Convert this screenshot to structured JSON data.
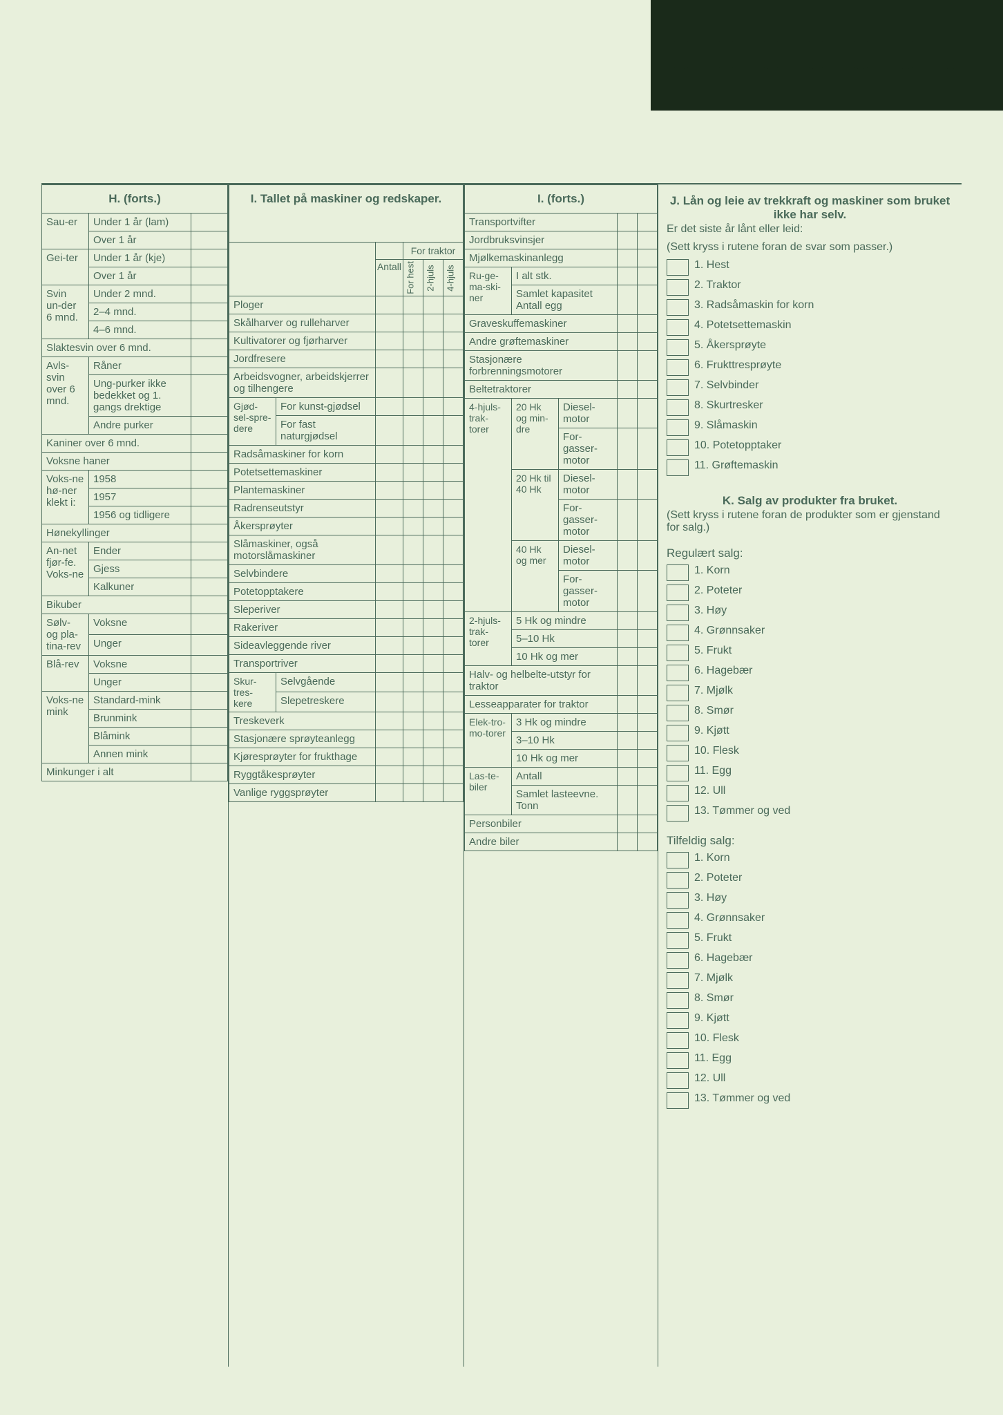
{
  "sections": {
    "H": {
      "title": "H. (forts.)",
      "rows": [
        {
          "g": "Sau-er",
          "l": "Under 1 år (lam)"
        },
        {
          "g": "",
          "l": "Over 1 år"
        },
        {
          "g": "Gei-ter",
          "l": "Under 1 år (kje)"
        },
        {
          "g": "",
          "l": "Over 1 år"
        },
        {
          "g": "Svin un-der 6 mnd.",
          "l": "Under 2 mnd."
        },
        {
          "g": "",
          "l": "2–4 mnd."
        },
        {
          "g": "",
          "l": "4–6 mnd."
        },
        {
          "g": "Slaktesvin over 6 mnd.",
          "l": ""
        },
        {
          "g": "Avls-svin over 6 mnd.",
          "l": "Råner"
        },
        {
          "g": "",
          "l": "Ung-purker ikke bedekket og 1. gangs drektige"
        },
        {
          "g": "",
          "l": "Andre purker"
        },
        {
          "g": "Kaniner over 6 mnd.",
          "l": ""
        },
        {
          "g": "Voksne haner",
          "l": ""
        },
        {
          "g": "Voks-ne hø-ner klekt i:",
          "l": "1958"
        },
        {
          "g": "",
          "l": "1957"
        },
        {
          "g": "",
          "l": "1956 og tidligere"
        },
        {
          "g": "Hønekyllinger",
          "l": ""
        },
        {
          "g": "An-net fjør-fe. Voks-ne",
          "l": "Ender"
        },
        {
          "g": "",
          "l": "Gjess"
        },
        {
          "g": "",
          "l": "Kalkuner"
        },
        {
          "g": "Bikuber",
          "l": ""
        },
        {
          "g": "Sølv- og pla-tina-rev",
          "l": "Voksne"
        },
        {
          "g": "",
          "l": "Unger"
        },
        {
          "g": "Blå-rev",
          "l": "Voksne"
        },
        {
          "g": "",
          "l": "Unger"
        },
        {
          "g": "Voks-ne mink",
          "l": "Standard-mink"
        },
        {
          "g": "",
          "l": "Brunmink"
        },
        {
          "g": "",
          "l": "Blåmink"
        },
        {
          "g": "",
          "l": "Annen mink"
        },
        {
          "g": "Minkunger i alt",
          "l": ""
        }
      ]
    },
    "I": {
      "title": "I. Tallet på maskiner og redskaper.",
      "traktor_hdr": "For traktor",
      "cols": [
        "For hest",
        "2-hjuls",
        "4-hjuls"
      ],
      "antall": "Antall",
      "rows": [
        "Ploger",
        "Skålharver og rulleharver",
        "Kultivatorer og fjørharver",
        "Jordfresere",
        "Arbeidsvogner, arbeidskjerrer og tilhengere",
        "Gjød-sel-spre-dere|For kunst-gjødsel",
        "|For fast naturgjødsel",
        "Radsåmaskiner for korn",
        "Potetsettemaskiner",
        "Plantemaskiner",
        "Radrenseutstyr",
        "Åkersprøyter",
        "Slåmaskiner, også motorslåmaskiner",
        "Selvbindere",
        "Potetopptakere",
        "Sleperiver",
        "Rakeriver",
        "Sideavleggende river",
        "Transportriver",
        "Skur-tres-kere|Selvgående",
        "|Slepetreskere",
        "Treskeverk",
        "Stasjonære sprøyteanlegg",
        "Kjøresprøyter for frukthage",
        "Ryggtåkesprøyter",
        "Vanlige ryggsprøyter"
      ]
    },
    "I2": {
      "title": "I. (forts.)",
      "rows": [
        {
          "l": "Transportvifter"
        },
        {
          "l": "Jordbruksvinsjer"
        },
        {
          "l": "Mjølkemaskinanlegg"
        },
        {
          "g": "Ru-ge-ma-ski-ner",
          "l": "I alt stk."
        },
        {
          "g": "",
          "l": "Samlet kapasitet Antall egg"
        },
        {
          "l": "Graveskuffemaskiner"
        },
        {
          "l": "Andre grøftemaskiner"
        },
        {
          "l": "Stasjonære forbrenningsmotorer"
        },
        {
          "l": "Beltetraktorer"
        },
        {
          "g": "4-hjuls-trak-torer",
          "s": "20 Hk og min-dre",
          "l": "Diesel-motor"
        },
        {
          "g": "",
          "s": "",
          "l": "For-gasser-motor"
        },
        {
          "g": "",
          "s": "20 Hk til 40 Hk",
          "l": "Diesel-motor"
        },
        {
          "g": "",
          "s": "",
          "l": "For-gasser-motor"
        },
        {
          "g": "",
          "s": "40 Hk og mer",
          "l": "Diesel-motor"
        },
        {
          "g": "",
          "s": "",
          "l": "For-gasser-motor"
        },
        {
          "g": "2-hjuls-trak-torer",
          "l": "5 Hk og mindre"
        },
        {
          "g": "",
          "l": "5–10 Hk"
        },
        {
          "g": "",
          "l": "10 Hk og mer"
        },
        {
          "l": "Halv- og helbelte-utstyr for traktor"
        },
        {
          "l": "Lesseapparater for traktor"
        },
        {
          "g": "Elek-tro-mo-torer",
          "l": "3 Hk og mindre"
        },
        {
          "g": "",
          "l": "3–10 Hk"
        },
        {
          "g": "",
          "l": "10 Hk og mer"
        },
        {
          "g": "Las-te-biler",
          "l": "Antall"
        },
        {
          "g": "",
          "l": "Samlet lasteevne. Tonn"
        },
        {
          "l": "Personbiler"
        },
        {
          "l": "Andre biler"
        }
      ]
    },
    "J": {
      "title": "J. Lån og leie av trekkraft og maskiner som bruket ikke har selv.",
      "intro": "Er det siste år lånt eller leid:",
      "hint": "(Sett kryss i rutene foran de svar som passer.)",
      "items": [
        "1. Hest",
        "2. Traktor",
        "3. Radsåmaskin for korn",
        "4. Potetsettemaskin",
        "5. Åkersprøyte",
        "6. Frukttresprøyte",
        "7. Selvbinder",
        "8. Skurtresker",
        "9. Slåmaskin",
        "10. Potetopptaker",
        "11. Grøftemaskin"
      ]
    },
    "K": {
      "title": "K. Salg av produkter fra bruket.",
      "hint": "(Sett kryss i rutene foran de produkter som er gjenstand for salg.)",
      "reg_title": "Regulært salg:",
      "reg": [
        "1. Korn",
        "2. Poteter",
        "3. Høy",
        "4. Grønnsaker",
        "5. Frukt",
        "6. Hagebær",
        "7. Mjølk",
        "8. Smør",
        "9. Kjøtt",
        "10. Flesk",
        "11. Egg",
        "12. Ull",
        "13. Tømmer og ved"
      ],
      "tilf_title": "Tilfeldig salg:",
      "tilf": [
        "1. Korn",
        "2. Poteter",
        "3. Høy",
        "4. Grønnsaker",
        "5. Frukt",
        "6. Hagebær",
        "7. Mjølk",
        "8. Smør",
        "9. Kjøtt",
        "10. Flesk",
        "11. Egg",
        "12. Ull",
        "13. Tømmer og ved"
      ]
    }
  },
  "colors": {
    "bg": "#e8f0dc",
    "ink": "#4a6a5a",
    "dark": "#1a2a1a",
    "hole": "#1a2a1a"
  }
}
